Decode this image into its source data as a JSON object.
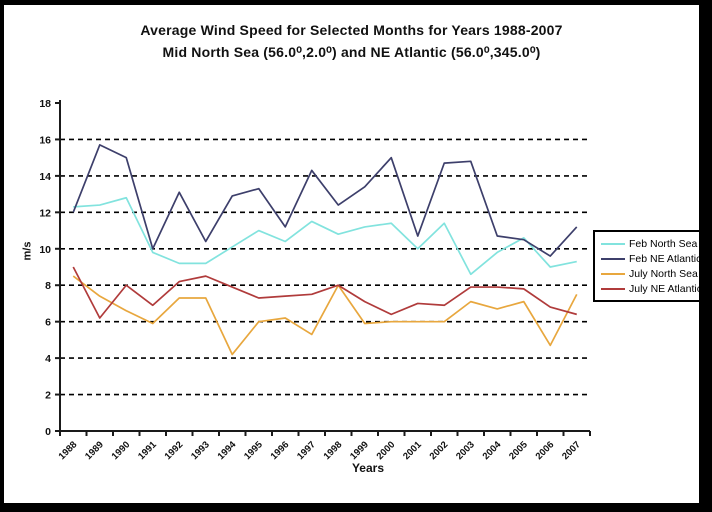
{
  "title": {
    "line1": "Average Wind Speed for Selected Months for Years 1988-2007",
    "line2": "Mid North Sea (56.0⁰,2.0⁰) and NE Atlantic (56.0⁰,345.0⁰)"
  },
  "chart_data": {
    "type": "line",
    "title": "Average Wind Speed for Selected Months for Years 1988-2007 Mid North Sea (56.0⁰,2.0⁰) and NE Atlantic (56.0⁰,345.0⁰)",
    "xlabel": "Years",
    "ylabel": "m/s",
    "ylim": [
      0,
      18
    ],
    "ytick_step": 2,
    "grid": "horizontal dashed black, at 2 through 16",
    "legend_position": "right outside plot",
    "categories": [
      "1988",
      "1989",
      "1990",
      "1991",
      "1992",
      "1993",
      "1994",
      "1995",
      "1996",
      "1997",
      "1998",
      "1999",
      "2000",
      "2001",
      "2002",
      "2003",
      "2004",
      "2005",
      "2006",
      "2007"
    ],
    "series": [
      {
        "name": "Feb North Sea",
        "color": "#82E3DE",
        "values": [
          12.3,
          12.4,
          12.8,
          9.8,
          9.2,
          9.2,
          10.1,
          11.0,
          10.4,
          11.5,
          10.8,
          11.2,
          11.4,
          10.0,
          11.4,
          8.6,
          9.8,
          10.6,
          9.0,
          9.3
        ]
      },
      {
        "name": "Feb NE Atlantic",
        "color": "#3D3F6B",
        "values": [
          12.0,
          15.7,
          15.0,
          10.0,
          13.1,
          10.4,
          12.9,
          13.3,
          11.2,
          14.3,
          12.4,
          13.4,
          15.0,
          10.7,
          14.7,
          14.8,
          10.7,
          10.5,
          9.6,
          11.2
        ]
      },
      {
        "name": "July North Sea",
        "color": "#E8A73E",
        "values": [
          8.5,
          7.4,
          6.6,
          5.9,
          7.3,
          7.3,
          4.2,
          6.0,
          6.2,
          5.3,
          8.0,
          5.9,
          6.0,
          6.0,
          6.0,
          7.1,
          6.7,
          7.1,
          4.7,
          7.5
        ]
      },
      {
        "name": "July NE Atlantic",
        "color": "#B03B3B",
        "values": [
          9.0,
          6.2,
          8.0,
          6.9,
          8.2,
          8.5,
          7.9,
          7.3,
          7.4,
          7.5,
          8.0,
          7.1,
          6.4,
          7.0,
          6.9,
          7.9,
          7.9,
          7.8,
          6.8,
          6.4
        ]
      }
    ]
  }
}
